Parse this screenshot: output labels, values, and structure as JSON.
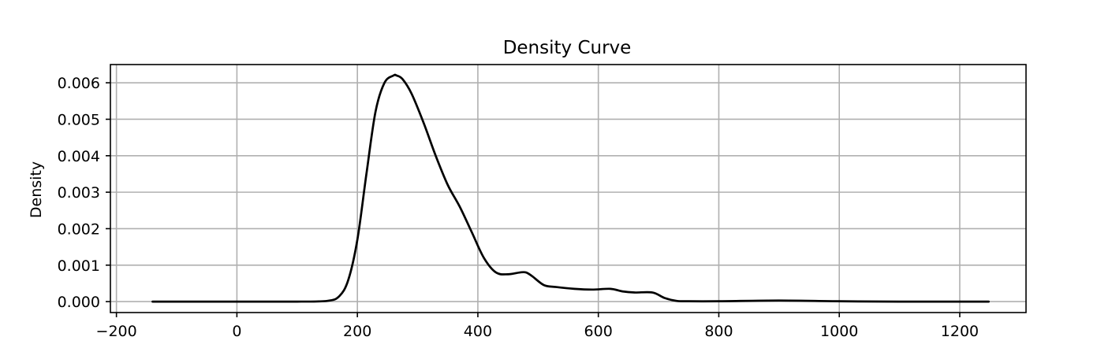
{
  "chart_data": {
    "type": "line",
    "title": "Density Curve",
    "xlabel": "",
    "ylabel": "Density",
    "xlim": [
      -210,
      1310
    ],
    "ylim": [
      -0.0003,
      0.0065
    ],
    "xticks": [
      -200,
      0,
      200,
      400,
      600,
      800,
      1000,
      1200
    ],
    "xtick_labels": [
      "−200",
      "0",
      "200",
      "400",
      "600",
      "800",
      "1000",
      "1200"
    ],
    "yticks": [
      0.0,
      0.001,
      0.002,
      0.003,
      0.004,
      0.005,
      0.006
    ],
    "ytick_labels": [
      "0.000",
      "0.001",
      "0.002",
      "0.003",
      "0.004",
      "0.005",
      "0.006"
    ],
    "grid": true,
    "line_color": "#000000",
    "series": [
      {
        "x": [
          -140,
          0,
          100,
          150,
          170,
          185,
          200,
          215,
          230,
          245,
          260,
          265,
          275,
          290,
          310,
          330,
          350,
          370,
          390,
          410,
          430,
          450,
          470,
          480,
          490,
          510,
          530,
          560,
          590,
          620,
          640,
          660,
          690,
          710,
          730,
          750,
          800,
          900,
          1000,
          1100,
          1248
        ],
        "y": [
          0.0,
          0.0,
          0.0,
          2e-05,
          0.00015,
          0.0006,
          0.0017,
          0.0035,
          0.0052,
          0.006,
          0.0062,
          0.0062,
          0.0061,
          0.0057,
          0.0049,
          0.004,
          0.0032,
          0.0026,
          0.0019,
          0.0012,
          0.0008,
          0.00075,
          0.0008,
          0.0008,
          0.0007,
          0.00045,
          0.0004,
          0.00035,
          0.00033,
          0.00035,
          0.00028,
          0.00025,
          0.00025,
          0.0001,
          2e-05,
          1e-05,
          1e-05,
          3e-05,
          1e-05,
          0.0,
          0.0
        ]
      }
    ]
  }
}
